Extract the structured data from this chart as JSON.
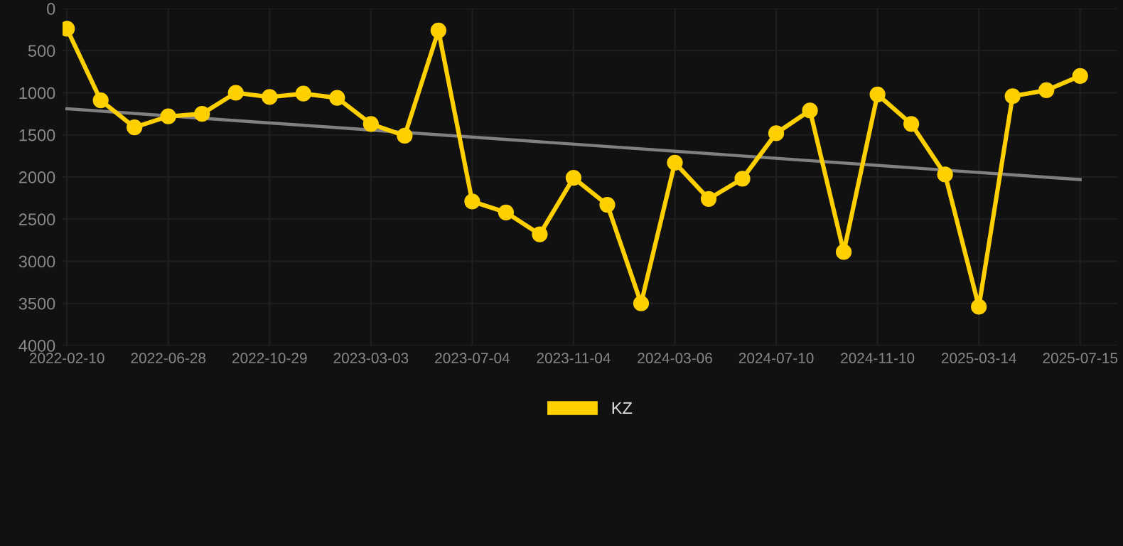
{
  "chart_data": {
    "type": "line",
    "categories": [
      "2022-02-10",
      null,
      null,
      "2022-06-28",
      null,
      null,
      "2022-10-29",
      null,
      null,
      "2023-03-03",
      null,
      null,
      "2023-07-04",
      null,
      null,
      "2023-11-04",
      null,
      null,
      "2024-03-06",
      null,
      null,
      "2024-07-10",
      null,
      null,
      "2024-11-10",
      null,
      null,
      "2025-03-14",
      null,
      null,
      "2025-07-15"
    ],
    "series": [
      {
        "name": "KZ",
        "color": "#ffd000",
        "marker": "circle",
        "values": [
          240,
          1090,
          1410,
          1280,
          1250,
          1000,
          1050,
          1010,
          1060,
          1370,
          1510,
          260,
          2290,
          2420,
          2680,
          2010,
          2330,
          3500,
          1830,
          2260,
          2020,
          1480,
          1210,
          2890,
          1020,
          1370,
          1970,
          3540,
          1040,
          970,
          800
        ]
      },
      {
        "type": "line",
        "color": "#808080",
        "marker": "none",
        "values": [
          1190,
          null,
          null,
          null,
          null,
          null,
          null,
          null,
          null,
          null,
          null,
          null,
          null,
          null,
          null,
          null,
          null,
          null,
          null,
          null,
          null,
          null,
          null,
          null,
          null,
          null,
          null,
          null,
          null,
          null,
          2030
        ]
      }
    ],
    "ylim": [
      4000,
      0
    ],
    "yticks": [
      0,
      500,
      1000,
      1500,
      2000,
      2500,
      3000,
      3500,
      4000
    ],
    "grid": true,
    "legend": "bottom"
  }
}
